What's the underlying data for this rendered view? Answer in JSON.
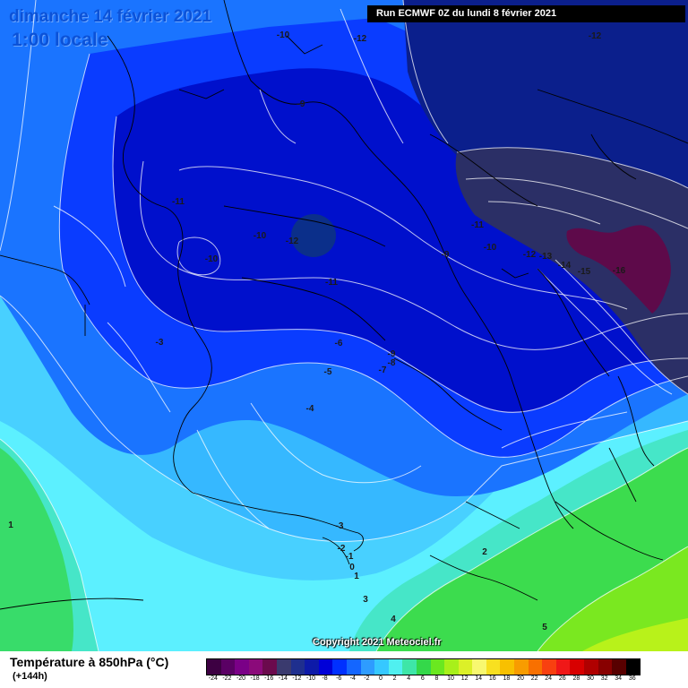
{
  "header": {
    "date": "dimanche 14 février 2021",
    "time": "1:00 locale",
    "run": "Run ECMWF 0Z du lundi 8 février 2021"
  },
  "copyright": "Copyright 2021 Meteociel.fr",
  "legend": {
    "title": "Température à 850hPa (°C)",
    "subtitle": "(+144h)",
    "stops": [
      {
        "value": "-24",
        "color": "#3d0042"
      },
      {
        "value": "-22",
        "color": "#5a0064"
      },
      {
        "value": "-20",
        "color": "#7a0087"
      },
      {
        "value": "-18",
        "color": "#8b0a7a"
      },
      {
        "value": "-16",
        "color": "#6b0a4d"
      },
      {
        "value": "-14",
        "color": "#3a3a6e"
      },
      {
        "value": "-12",
        "color": "#1f2f8e"
      },
      {
        "value": "-10",
        "color": "#0d1aa8"
      },
      {
        "value": "-8",
        "color": "#0000d8"
      },
      {
        "value": "-6",
        "color": "#0030ff"
      },
      {
        "value": "-4",
        "color": "#1466ff"
      },
      {
        "value": "-2",
        "color": "#2e9cff"
      },
      {
        "value": "0",
        "color": "#36c8ff"
      },
      {
        "value": "2",
        "color": "#50f0f0"
      },
      {
        "value": "4",
        "color": "#3ee6a8"
      },
      {
        "value": "6",
        "color": "#34d84a"
      },
      {
        "value": "8",
        "color": "#6ae820"
      },
      {
        "value": "10",
        "color": "#a8f01a"
      },
      {
        "value": "12",
        "color": "#dcf028"
      },
      {
        "value": "14",
        "color": "#f8f870"
      },
      {
        "value": "16",
        "color": "#f8e020"
      },
      {
        "value": "18",
        "color": "#f8c000"
      },
      {
        "value": "20",
        "color": "#f89c00"
      },
      {
        "value": "22",
        "color": "#f87000"
      },
      {
        "value": "24",
        "color": "#f84010"
      },
      {
        "value": "26",
        "color": "#f01818"
      },
      {
        "value": "28",
        "color": "#d80000"
      },
      {
        "value": "30",
        "color": "#b00000"
      },
      {
        "value": "32",
        "color": "#880000"
      },
      {
        "value": "34",
        "color": "#580000"
      },
      {
        "value": "36",
        "color": "#000000"
      }
    ]
  },
  "isotherms": [
    {
      "text": "-10"
    },
    {
      "text": "-12"
    },
    {
      "text": "-12"
    },
    {
      "text": "-9"
    },
    {
      "text": "-11"
    },
    {
      "text": "-10"
    },
    {
      "text": "-12"
    },
    {
      "text": "-10"
    },
    {
      "text": "-11"
    },
    {
      "text": "-9"
    },
    {
      "text": "-11"
    },
    {
      "text": "-10"
    },
    {
      "text": "-12"
    },
    {
      "text": "-13"
    },
    {
      "text": "-14"
    },
    {
      "text": "-15"
    },
    {
      "text": "-16"
    },
    {
      "text": "-3"
    },
    {
      "text": "-6"
    },
    {
      "text": "-5"
    },
    {
      "text": "-9"
    },
    {
      "text": "-8"
    },
    {
      "text": "-7"
    },
    {
      "text": "-4"
    },
    {
      "text": "1"
    },
    {
      "text": "-3"
    },
    {
      "text": "-2"
    },
    {
      "text": "-1"
    },
    {
      "text": "0"
    },
    {
      "text": "1"
    },
    {
      "text": "2"
    },
    {
      "text": "3"
    },
    {
      "text": "4"
    },
    {
      "text": "5"
    }
  ]
}
